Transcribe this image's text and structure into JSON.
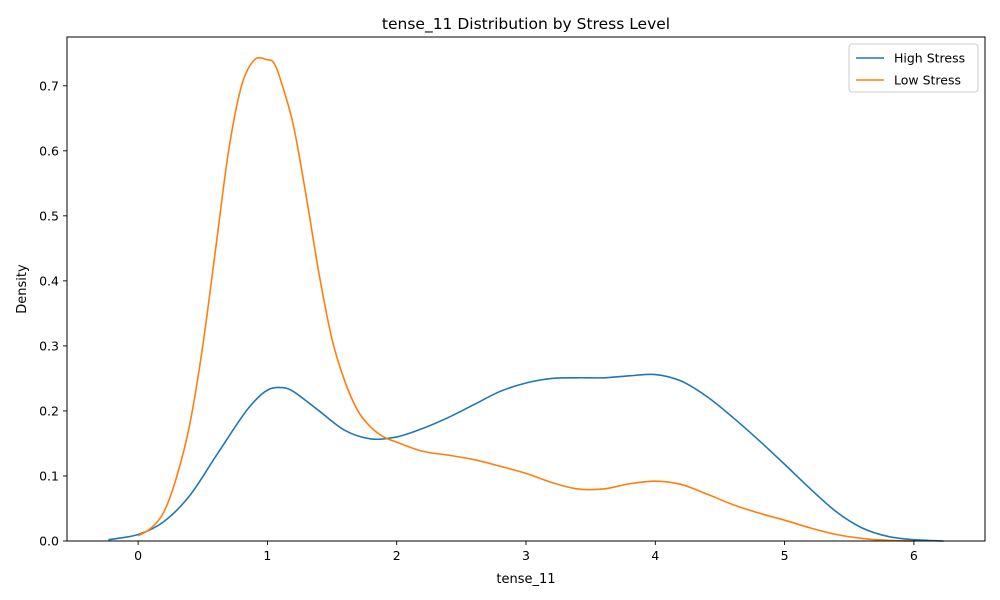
{
  "chart_data": {
    "type": "line",
    "title": "tense_11 Distribution by Stress Level",
    "xlabel": "tense_11",
    "ylabel": "Density",
    "xlim": [
      -0.55,
      6.55
    ],
    "ylim": [
      0,
      0.775
    ],
    "xticks": [
      0,
      1,
      2,
      3,
      4,
      5,
      6
    ],
    "yticks": [
      0.0,
      0.1,
      0.2,
      0.3,
      0.4,
      0.5,
      0.6,
      0.7
    ],
    "grid": false,
    "legend_position": "top-right",
    "series": [
      {
        "name": "High Stress",
        "color": "#1f77b4",
        "x": [
          -0.23,
          0.0,
          0.2,
          0.4,
          0.6,
          0.8,
          0.9,
          1.0,
          1.1,
          1.2,
          1.4,
          1.6,
          1.8,
          2.0,
          2.2,
          2.4,
          2.6,
          2.8,
          3.0,
          3.2,
          3.4,
          3.6,
          3.8,
          4.0,
          4.2,
          4.4,
          4.6,
          4.8,
          5.0,
          5.2,
          5.4,
          5.6,
          5.8,
          6.0,
          6.23
        ],
        "y": [
          0.002,
          0.01,
          0.03,
          0.07,
          0.13,
          0.19,
          0.215,
          0.232,
          0.236,
          0.23,
          0.2,
          0.17,
          0.157,
          0.16,
          0.173,
          0.19,
          0.21,
          0.23,
          0.243,
          0.25,
          0.251,
          0.251,
          0.254,
          0.256,
          0.246,
          0.222,
          0.19,
          0.155,
          0.118,
          0.08,
          0.045,
          0.02,
          0.007,
          0.002,
          0.0
        ]
      },
      {
        "name": "Low Stress",
        "color": "#ff7f0e",
        "x": [
          0.0,
          0.1,
          0.2,
          0.3,
          0.4,
          0.5,
          0.6,
          0.7,
          0.8,
          0.9,
          1.0,
          1.05,
          1.1,
          1.2,
          1.3,
          1.4,
          1.5,
          1.6,
          1.7,
          1.8,
          1.9,
          2.0,
          2.2,
          2.4,
          2.6,
          2.8,
          3.0,
          3.2,
          3.4,
          3.6,
          3.8,
          4.0,
          4.2,
          4.4,
          4.6,
          4.8,
          5.0,
          5.2,
          5.4,
          5.6,
          5.8,
          6.0
        ],
        "y": [
          0.008,
          0.02,
          0.045,
          0.1,
          0.18,
          0.3,
          0.45,
          0.6,
          0.7,
          0.74,
          0.74,
          0.735,
          0.71,
          0.64,
          0.53,
          0.41,
          0.31,
          0.245,
          0.2,
          0.175,
          0.16,
          0.152,
          0.138,
          0.132,
          0.125,
          0.115,
          0.104,
          0.09,
          0.08,
          0.08,
          0.088,
          0.092,
          0.087,
          0.072,
          0.056,
          0.043,
          0.032,
          0.02,
          0.01,
          0.004,
          0.001,
          0.0
        ]
      }
    ]
  }
}
